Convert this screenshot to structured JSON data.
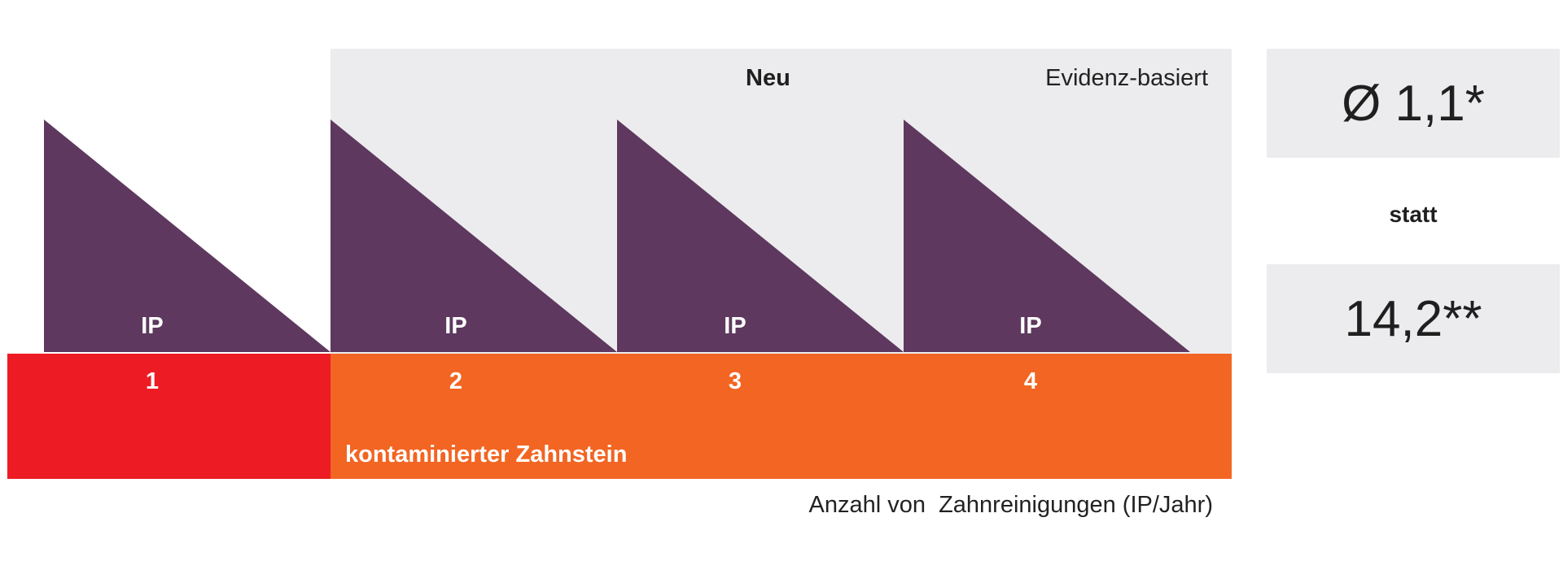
{
  "header": {
    "new_label": "Neu",
    "evidence_label": "Evidenz-basiert"
  },
  "cycles": [
    {
      "ip_label": "IP",
      "number": "1"
    },
    {
      "ip_label": "IP",
      "number": "2"
    },
    {
      "ip_label": "IP",
      "number": "3"
    },
    {
      "ip_label": "IP",
      "number": "4"
    }
  ],
  "bar": {
    "contaminated_label": "kontaminierter Zahnstein"
  },
  "axis_caption": "Anzahl von  Zahnreinigungen (IP/Jahr)",
  "comparison": {
    "new_value": "Ø 1,1*",
    "separator": "statt",
    "old_value": "14,2**"
  },
  "colors": {
    "triangle": "#5e385e",
    "bar_first": "#ed1c24",
    "bar_rest": "#f26522",
    "panel_bg": "#ececee",
    "text": "#1f1f1f"
  }
}
